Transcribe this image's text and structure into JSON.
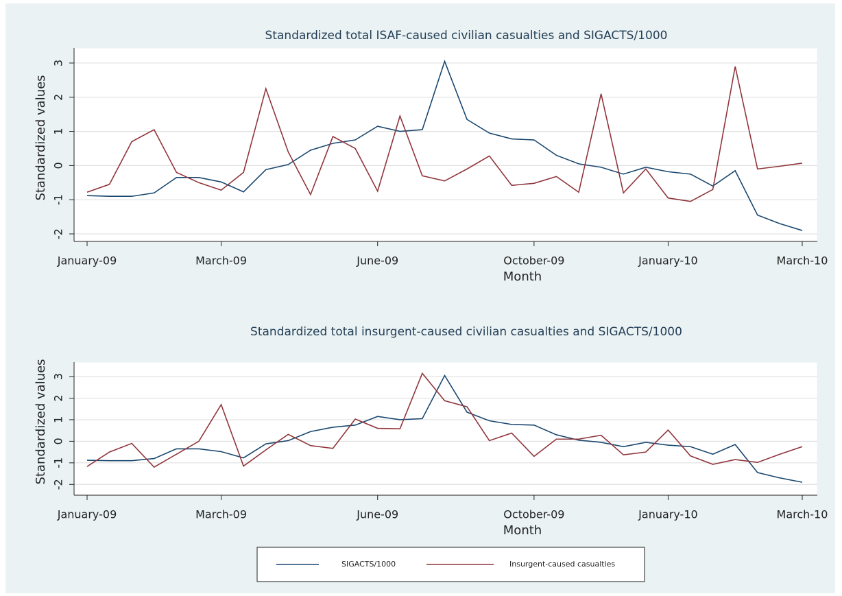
{
  "chart_data": [
    {
      "type": "line",
      "title": "Standardized total ISAF-caused civilian casualties and SIGACTS/1000",
      "xlabel": "Month",
      "ylabel": "Standardized values",
      "categories": [
        "January-09",
        null,
        null,
        null,
        null,
        null,
        "March-09",
        null,
        null,
        null,
        null,
        null,
        null,
        "June-09",
        null,
        null,
        null,
        null,
        null,
        null,
        "October-09",
        null,
        null,
        null,
        null,
        null,
        "January-10",
        null,
        null,
        null,
        null,
        null,
        "March-10"
      ],
      "series": [
        {
          "color": "#1a476f",
          "values": [
            -0.88,
            -0.9,
            -0.9,
            -0.8,
            -0.35,
            -0.35,
            -0.48,
            -0.77,
            -0.12,
            0.03,
            0.45,
            0.65,
            0.75,
            1.15,
            1.0,
            1.05,
            3.05,
            1.35,
            0.95,
            0.78,
            0.75,
            0.3,
            0.05,
            -0.05,
            -0.25,
            -0.05,
            -0.18,
            -0.25,
            -0.6,
            -0.15,
            -1.45,
            -1.7,
            -1.9
          ]
        },
        {
          "color": "#90353b",
          "values": [
            -0.78,
            -0.55,
            0.7,
            1.05,
            -0.2,
            -0.5,
            -0.72,
            -0.2,
            2.25,
            0.4,
            -0.85,
            0.85,
            0.5,
            -0.75,
            1.45,
            -0.3,
            -0.45,
            -0.1,
            0.28,
            -0.58,
            -0.52,
            -0.32,
            -0.78,
            2.1,
            -0.8,
            -0.1,
            -0.95,
            -1.05,
            -0.7,
            2.9,
            -0.1,
            -0.02,
            0.07
          ]
        }
      ],
      "ylim": [
        -2.22,
        3.44
      ],
      "yticks": [
        -2,
        -1,
        0,
        1,
        2,
        3
      ],
      "grid": true
    },
    {
      "type": "line",
      "title": "Standardized total insurgent-caused civilian casualties and SIGACTS/1000",
      "xlabel": "Month",
      "ylabel": "Standardized values",
      "categories": [
        "January-09",
        null,
        null,
        null,
        null,
        null,
        "March-09",
        null,
        null,
        null,
        null,
        null,
        null,
        "June-09",
        null,
        null,
        null,
        null,
        null,
        null,
        "October-09",
        null,
        null,
        null,
        null,
        null,
        "January-10",
        null,
        null,
        null,
        null,
        null,
        "March-10"
      ],
      "series": [
        {
          "name": "SIGACTS/1000",
          "color": "#1a476f",
          "values": [
            -0.88,
            -0.9,
            -0.9,
            -0.8,
            -0.35,
            -0.35,
            -0.48,
            -0.77,
            -0.12,
            0.03,
            0.45,
            0.65,
            0.75,
            1.15,
            1.0,
            1.05,
            3.05,
            1.35,
            0.95,
            0.78,
            0.75,
            0.3,
            0.05,
            -0.05,
            -0.25,
            -0.05,
            -0.18,
            -0.25,
            -0.6,
            -0.15,
            -1.45,
            -1.7,
            -1.9
          ]
        },
        {
          "name": "Insurgent-caused casualties",
          "color": "#90353b",
          "values": [
            -1.17,
            -0.5,
            -0.1,
            -1.2,
            -0.6,
            0.0,
            1.7,
            -1.15,
            -0.4,
            0.32,
            -0.2,
            -0.33,
            1.03,
            0.6,
            0.58,
            3.15,
            1.88,
            1.6,
            0.03,
            0.38,
            -0.7,
            0.1,
            0.1,
            0.28,
            -0.63,
            -0.5,
            0.52,
            -0.68,
            -1.07,
            -0.85,
            -0.98,
            -0.6,
            -0.25
          ]
        }
      ],
      "ylim": [
        -2.5,
        3.67
      ],
      "yticks": [
        -2,
        -1,
        0,
        1,
        2,
        3
      ],
      "grid": true
    }
  ]
}
